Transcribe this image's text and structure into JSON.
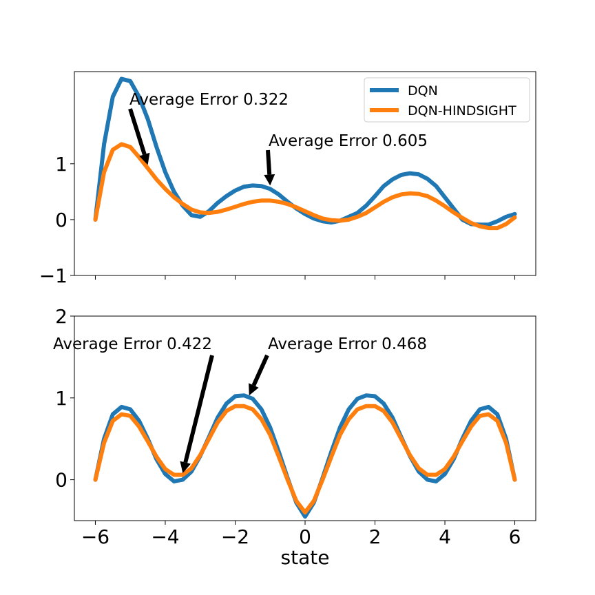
{
  "chart_data": [
    {
      "type": "line",
      "xlim": [
        -6.6,
        6.6
      ],
      "ylim": [
        -1,
        2.65
      ],
      "yticks": [
        -1,
        0,
        1
      ],
      "ytick_labels": [
        "−1",
        "0",
        "1"
      ],
      "xticks_shown": false,
      "legend": {
        "placement": "top-right",
        "entries": [
          "DQN",
          "DQN-HINDSIGHT"
        ]
      },
      "series": [
        {
          "name": "DQN",
          "color": "#1f77b4",
          "x": [
            -6,
            -5.75,
            -5.5,
            -5.25,
            -5,
            -4.75,
            -4.5,
            -4.25,
            -4,
            -3.75,
            -3.5,
            -3.25,
            -3,
            -2.75,
            -2.5,
            -2.25,
            -2,
            -1.75,
            -1.5,
            -1.25,
            -1,
            -0.75,
            -0.5,
            -0.25,
            0,
            0.25,
            0.5,
            0.75,
            1,
            1.25,
            1.5,
            1.75,
            2,
            2.25,
            2.5,
            2.75,
            3,
            3.25,
            3.5,
            3.75,
            4,
            4.25,
            4.5,
            4.75,
            5,
            5.25,
            5.5,
            5.75,
            6
          ],
          "y": [
            0,
            1.35,
            2.2,
            2.52,
            2.48,
            2.2,
            1.8,
            1.3,
            0.85,
            0.5,
            0.25,
            0.08,
            0.05,
            0.15,
            0.3,
            0.42,
            0.52,
            0.59,
            0.61,
            0.6,
            0.55,
            0.45,
            0.32,
            0.2,
            0.1,
            0.02,
            -0.03,
            -0.05,
            -0.02,
            0.05,
            0.12,
            0.25,
            0.42,
            0.6,
            0.72,
            0.8,
            0.83,
            0.81,
            0.73,
            0.6,
            0.4,
            0.2,
            0.0,
            -0.08,
            -0.09,
            -0.09,
            -0.03,
            0.05,
            0.1
          ]
        },
        {
          "name": "DQN-HINDSIGHT",
          "color": "#ff7f0e",
          "x": [
            -6,
            -5.75,
            -5.5,
            -5.25,
            -5,
            -4.75,
            -4.5,
            -4.25,
            -4,
            -3.75,
            -3.5,
            -3.25,
            -3,
            -2.75,
            -2.5,
            -2.25,
            -2,
            -1.75,
            -1.5,
            -1.25,
            -1,
            -0.75,
            -0.5,
            -0.25,
            0,
            0.25,
            0.5,
            0.75,
            1,
            1.25,
            1.5,
            1.75,
            2,
            2.25,
            2.5,
            2.75,
            3,
            3.25,
            3.5,
            3.75,
            4,
            4.25,
            4.5,
            4.75,
            5,
            5.25,
            5.5,
            5.75,
            6
          ],
          "y": [
            0,
            0.85,
            1.25,
            1.35,
            1.3,
            1.12,
            0.92,
            0.72,
            0.55,
            0.4,
            0.28,
            0.18,
            0.13,
            0.12,
            0.14,
            0.18,
            0.23,
            0.28,
            0.32,
            0.34,
            0.34,
            0.32,
            0.28,
            0.22,
            0.15,
            0.08,
            0.02,
            -0.01,
            -0.02,
            0.0,
            0.05,
            0.12,
            0.22,
            0.32,
            0.4,
            0.45,
            0.47,
            0.46,
            0.42,
            0.34,
            0.24,
            0.13,
            0.03,
            -0.06,
            -0.12,
            -0.15,
            -0.15,
            -0.08,
            0.04
          ]
        }
      ],
      "annotations": [
        {
          "text": "Average Error 0.322",
          "x": -4.5,
          "y": 0.98
        },
        {
          "text": "Average Error 0.605",
          "x": -1.0,
          "y": 0.61
        }
      ]
    },
    {
      "type": "line",
      "xlim": [
        -6.6,
        6.6
      ],
      "ylim": [
        -0.5,
        2.0
      ],
      "yticks": [
        0,
        1,
        2
      ],
      "ytick_labels": [
        "0",
        "1",
        "2"
      ],
      "xticks": [
        -6,
        -4,
        -2,
        0,
        2,
        4,
        6
      ],
      "xtick_labels": [
        "−6",
        "−4",
        "−2",
        "0",
        "2",
        "4",
        "6"
      ],
      "xlabel": "state",
      "series": [
        {
          "name": "DQN",
          "color": "#1f77b4",
          "x": [
            -6,
            -5.75,
            -5.5,
            -5.25,
            -5,
            -4.75,
            -4.5,
            -4.25,
            -4,
            -3.75,
            -3.5,
            -3.25,
            -3,
            -2.75,
            -2.5,
            -2.25,
            -2,
            -1.75,
            -1.5,
            -1.25,
            -1,
            -0.75,
            -0.5,
            -0.25,
            0,
            0.25,
            0.5,
            0.75,
            1,
            1.25,
            1.5,
            1.75,
            2,
            2.25,
            2.5,
            2.75,
            3,
            3.25,
            3.5,
            3.75,
            4,
            4.25,
            4.5,
            4.75,
            5,
            5.25,
            5.5,
            5.75,
            6
          ],
          "y": [
            0,
            0.5,
            0.8,
            0.89,
            0.86,
            0.72,
            0.5,
            0.25,
            0.07,
            -0.02,
            0.0,
            0.1,
            0.29,
            0.52,
            0.76,
            0.93,
            1.02,
            1.03,
            0.99,
            0.86,
            0.64,
            0.34,
            0.02,
            -0.28,
            -0.45,
            -0.28,
            0.02,
            0.34,
            0.64,
            0.86,
            0.99,
            1.03,
            1.02,
            0.93,
            0.76,
            0.52,
            0.29,
            0.1,
            0.0,
            -0.02,
            0.07,
            0.25,
            0.5,
            0.72,
            0.86,
            0.89,
            0.8,
            0.5,
            0
          ]
        },
        {
          "name": "DQN-HINDSIGHT",
          "color": "#ff7f0e",
          "x": [
            -6,
            -5.75,
            -5.5,
            -5.25,
            -5,
            -4.75,
            -4.5,
            -4.25,
            -4,
            -3.75,
            -3.5,
            -3.25,
            -3,
            -2.75,
            -2.5,
            -2.25,
            -2,
            -1.75,
            -1.5,
            -1.25,
            -1,
            -0.75,
            -0.5,
            -0.25,
            0,
            0.25,
            0.5,
            0.75,
            1,
            1.25,
            1.5,
            1.75,
            2,
            2.25,
            2.5,
            2.75,
            3,
            3.25,
            3.5,
            3.75,
            4,
            4.25,
            4.5,
            4.75,
            5,
            5.25,
            5.5,
            5.75,
            6
          ],
          "y": [
            0,
            0.45,
            0.72,
            0.8,
            0.78,
            0.65,
            0.47,
            0.28,
            0.13,
            0.06,
            0.06,
            0.14,
            0.3,
            0.5,
            0.7,
            0.84,
            0.9,
            0.9,
            0.86,
            0.74,
            0.55,
            0.28,
            0.0,
            -0.26,
            -0.4,
            -0.26,
            0.0,
            0.28,
            0.55,
            0.74,
            0.86,
            0.9,
            0.9,
            0.84,
            0.7,
            0.5,
            0.3,
            0.14,
            0.06,
            0.06,
            0.13,
            0.28,
            0.47,
            0.65,
            0.78,
            0.8,
            0.72,
            0.45,
            0
          ]
        }
      ],
      "annotations": [
        {
          "text": "Average Error 0.422",
          "x": -3.5,
          "y": 0.08
        },
        {
          "text": "Average Error 0.468",
          "x": -1.6,
          "y": 1.03
        }
      ]
    }
  ]
}
